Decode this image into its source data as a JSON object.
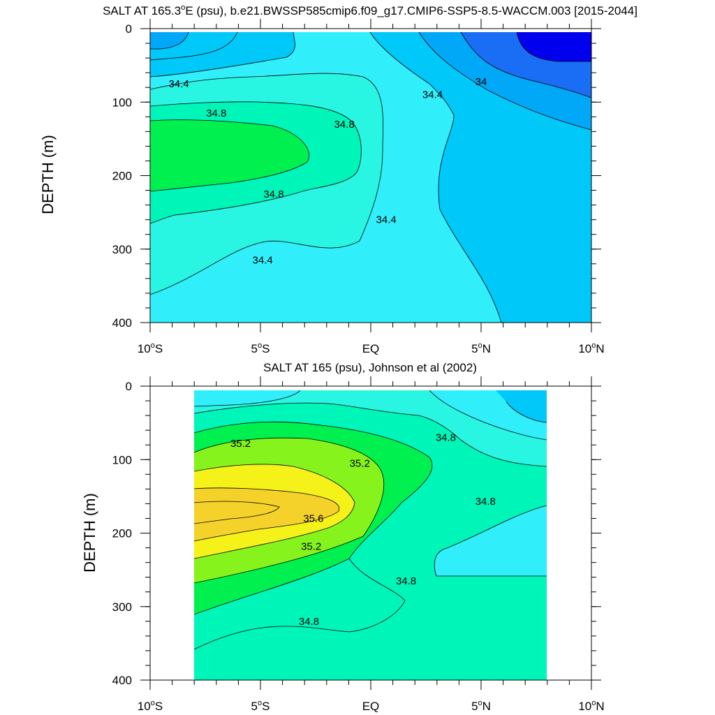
{
  "chart_data": [
    {
      "type": "contour",
      "title": "SALT AT 165.3°E (psu), b.e21.BWSSP585cmip6.f09_g17.CMIP6-SSP5-8.5-WACCM.003 [2015-2044]",
      "title_parts": {
        "pre": "SALT AT 165.3",
        "sup": "o",
        "post": "E (psu), b.e21.BWSSP585cmip6.f09_g17.CMIP6-SSP5-8.5-WACCM.003 [2015-2044]"
      },
      "ylabel": "DEPTH (m)",
      "xlabel": "",
      "xlim": [
        -10,
        10
      ],
      "ylim": [
        400,
        0
      ],
      "data_x_range": [
        -10,
        10
      ],
      "data_y_range": [
        5,
        400
      ],
      "xticks": [
        {
          "value": -10,
          "label": "10",
          "sup": "o",
          "suffix": "S"
        },
        {
          "value": -5,
          "label": "5",
          "sup": "o",
          "suffix": "S"
        },
        {
          "value": 0,
          "label": "EQ",
          "sup": "",
          "suffix": ""
        },
        {
          "value": 5,
          "label": "5",
          "sup": "o",
          "suffix": "N"
        },
        {
          "value": 10,
          "label": "10",
          "sup": "o",
          "suffix": "N"
        }
      ],
      "yticks": [
        0,
        100,
        200,
        300,
        400
      ],
      "contour_labels": [
        {
          "x": -8.7,
          "y": 75,
          "text": "34.4"
        },
        {
          "x": -7.0,
          "y": 115,
          "text": "34.8"
        },
        {
          "x": -1.2,
          "y": 130,
          "text": "34.8"
        },
        {
          "x": -4.4,
          "y": 225,
          "text": "34.8"
        },
        {
          "x": -4.9,
          "y": 315,
          "text": "34.4"
        },
        {
          "x": 0.7,
          "y": 260,
          "text": "34.4"
        },
        {
          "x": 2.8,
          "y": 90,
          "text": "34.4"
        },
        {
          "x": 5.0,
          "y": 72,
          "text": "34"
        }
      ]
    },
    {
      "type": "contour",
      "title": "SALT AT 165 (psu), Johnson et al (2002)",
      "ylabel": "DEPTH (m)",
      "xlabel": "",
      "xlim": [
        -10,
        10
      ],
      "ylim": [
        400,
        0
      ],
      "data_x_range": [
        -8,
        8
      ],
      "data_y_range": [
        5,
        400
      ],
      "xticks": [
        {
          "value": -10,
          "label": "10",
          "sup": "o",
          "suffix": "S"
        },
        {
          "value": -5,
          "label": "5",
          "sup": "o",
          "suffix": "S"
        },
        {
          "value": 0,
          "label": "EQ",
          "sup": "",
          "suffix": ""
        },
        {
          "value": 5,
          "label": "5",
          "sup": "o",
          "suffix": "N"
        },
        {
          "value": 10,
          "label": "10",
          "sup": "o",
          "suffix": "N"
        }
      ],
      "yticks": [
        0,
        100,
        200,
        300,
        400
      ],
      "contour_labels": [
        {
          "x": -5.9,
          "y": 78,
          "text": "35.2"
        },
        {
          "x": -0.5,
          "y": 105,
          "text": "35.2"
        },
        {
          "x": 3.4,
          "y": 70,
          "text": "34.8"
        },
        {
          "x": -2.6,
          "y": 180,
          "text": "35.6"
        },
        {
          "x": -2.7,
          "y": 218,
          "text": "35.2"
        },
        {
          "x": 5.2,
          "y": 157,
          "text": "34.8"
        },
        {
          "x": 1.6,
          "y": 265,
          "text": "34.8"
        },
        {
          "x": -2.8,
          "y": 320,
          "text": "34.8"
        }
      ]
    }
  ],
  "colors": {
    "s_33_8": "#0000ee",
    "s_34_0": "#1a6ef5",
    "s_34_2": "#00a8f7",
    "s_34_3": "#00c8f8",
    "s_34_4": "#30eefa",
    "s_34_6": "#28f6e2",
    "s_34_8": "#00f5b9",
    "s_35_0": "#00f050",
    "s_35_2": "#86f41c",
    "s_35_4": "#f5f21a",
    "s_35_6": "#f5d22a",
    "background": "#ffffff"
  }
}
